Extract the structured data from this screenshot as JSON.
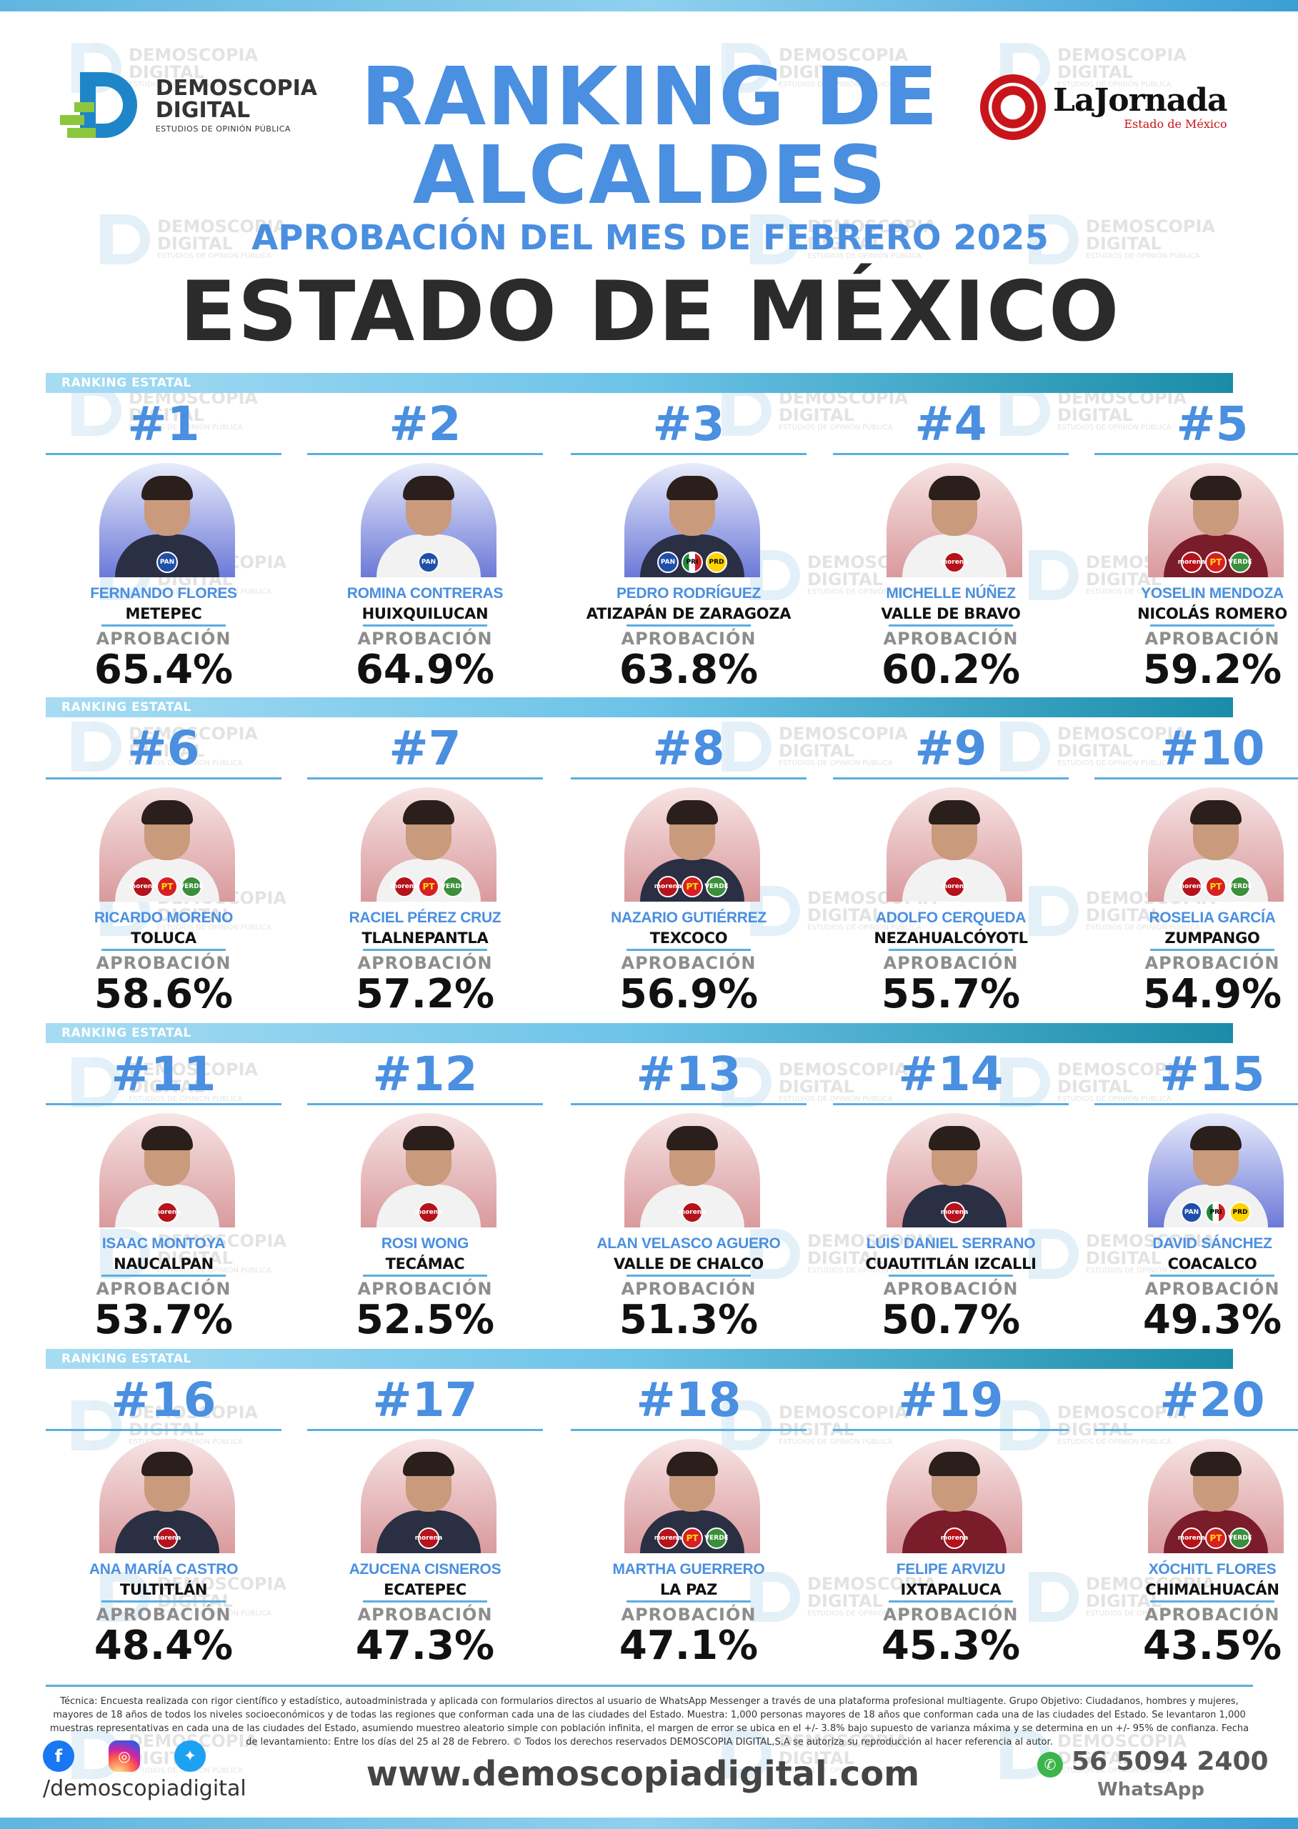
{
  "header": {
    "demoscopia_logo": {
      "line1": "DEMOSCOPIA",
      "line2": "DIGITAL",
      "tagline": "ESTUDIOS DE OPINIÓN PÚBLICA"
    },
    "jornada_logo": {
      "name": "LaJornada",
      "subtitle": "Estado de México"
    },
    "title_line1": "RANKING DE",
    "title_line2": "ALCALDES",
    "subtitle": "APROBACIÓN DEL MES DE FEBRERO 2025",
    "state": "ESTADO DE MÉXICO"
  },
  "watermark": {
    "line1": "DEMOSCOPIA",
    "line2": "DIGITAL",
    "line3": "ESTUDIOS DE OPINIÓN PÚBLICA"
  },
  "section_label": "RANKING ESTATAL",
  "approval_label": "APROBACIÓN",
  "colors": {
    "accent_blue": "#4a8fe0",
    "band_dark": "#1a8ca8",
    "morena": "#b5121b",
    "pan": "#1f4fa8"
  },
  "rows": [
    {
      "mayors": [
        {
          "rank": "#1",
          "name": "FERNANDO FLORES",
          "city": "METEPEC",
          "approval": "65.4%",
          "bg": "blue",
          "body": "dark",
          "parties": [
            "pan"
          ]
        },
        {
          "rank": "#2",
          "name": "ROMINA CONTRERAS",
          "city": "HUIXQUILUCAN",
          "approval": "64.9%",
          "bg": "blue",
          "body": "light",
          "parties": [
            "pan"
          ]
        },
        {
          "rank": "#3",
          "name": "PEDRO RODRÍGUEZ",
          "city": "ATIZAPÁN DE ZARAGOZA",
          "approval": "63.8%",
          "bg": "blue",
          "body": "dark",
          "parties": [
            "pan",
            "pri",
            "prd"
          ]
        },
        {
          "rank": "#4",
          "name": "MICHELLE NÚÑEZ",
          "city": "VALLE DE BRAVO",
          "approval": "60.2%",
          "bg": "red",
          "body": "light",
          "parties": [
            "morena"
          ]
        },
        {
          "rank": "#5",
          "name": "YOSELIN MENDOZA",
          "city": "NICOLÁS ROMERO",
          "approval": "59.2%",
          "bg": "red",
          "body": "maroon",
          "parties": [
            "morena",
            "pt",
            "verde"
          ]
        }
      ]
    },
    {
      "mayors": [
        {
          "rank": "#6",
          "name": "RICARDO MORENO",
          "city": "TOLUCA",
          "approval": "58.6%",
          "bg": "red",
          "body": "light",
          "parties": [
            "morena",
            "pt",
            "verde"
          ]
        },
        {
          "rank": "#7",
          "name": "RACIEL PÉREZ CRUZ",
          "city": "TLALNEPANTLA",
          "approval": "57.2%",
          "bg": "red",
          "body": "light",
          "parties": [
            "morena",
            "pt",
            "verde"
          ]
        },
        {
          "rank": "#8",
          "name": "NAZARIO GUTIÉRREZ",
          "city": "TEXCOCO",
          "approval": "56.9%",
          "bg": "red",
          "body": "dark",
          "parties": [
            "morena",
            "pt",
            "verde"
          ]
        },
        {
          "rank": "#9",
          "name": "ADOLFO CERQUEDA",
          "city": "NEZAHUALCÓYOTL",
          "approval": "55.7%",
          "bg": "red",
          "body": "light",
          "parties": [
            "morena"
          ]
        },
        {
          "rank": "#10",
          "name": "ROSELIA GARCÍA",
          "city": "ZUMPANGO",
          "approval": "54.9%",
          "bg": "red",
          "body": "light",
          "parties": [
            "morena",
            "pt",
            "verde"
          ]
        }
      ]
    },
    {
      "mayors": [
        {
          "rank": "#11",
          "name": "ISAAC MONTOYA",
          "city": "NAUCALPAN",
          "approval": "53.7%",
          "bg": "red",
          "body": "light",
          "parties": [
            "morena"
          ]
        },
        {
          "rank": "#12",
          "name": "ROSI WONG",
          "city": "TECÁMAC",
          "approval": "52.5%",
          "bg": "red",
          "body": "light",
          "parties": [
            "morena"
          ]
        },
        {
          "rank": "#13",
          "name": "ALAN VELASCO AGUERO",
          "city": "VALLE DE CHALCO",
          "approval": "51.3%",
          "bg": "red",
          "body": "light",
          "parties": [
            "morena"
          ]
        },
        {
          "rank": "#14",
          "name": "LUIS DANIEL SERRANO",
          "city": "CUAUTITLÁN IZCALLI",
          "approval": "50.7%",
          "bg": "red",
          "body": "dark",
          "parties": [
            "morena"
          ]
        },
        {
          "rank": "#15",
          "name": "DAVID SÁNCHEZ",
          "city": "COACALCO",
          "approval": "49.3%",
          "bg": "blue",
          "body": "light",
          "parties": [
            "pan",
            "pri",
            "prd"
          ]
        }
      ]
    },
    {
      "mayors": [
        {
          "rank": "#16",
          "name": "ANA MARÍA CASTRO",
          "city": "TULTITLÁN",
          "approval": "48.4%",
          "bg": "red",
          "body": "dark",
          "parties": [
            "morena"
          ]
        },
        {
          "rank": "#17",
          "name": "AZUCENA CISNEROS",
          "city": "ECATEPEC",
          "approval": "47.3%",
          "bg": "red",
          "body": "dark",
          "parties": [
            "morena"
          ]
        },
        {
          "rank": "#18",
          "name": "MARTHA GUERRERO",
          "city": "LA PAZ",
          "approval": "47.1%",
          "bg": "red",
          "body": "dark",
          "parties": [
            "morena",
            "pt",
            "verde"
          ]
        },
        {
          "rank": "#19",
          "name": "FELIPE ARVIZU",
          "city": "IXTAPALUCA",
          "approval": "45.3%",
          "bg": "red",
          "body": "maroon",
          "parties": [
            "morena"
          ]
        },
        {
          "rank": "#20",
          "name": "XÓCHITL FLORES",
          "city": "CHIMALHUACÁN",
          "approval": "43.5%",
          "bg": "red",
          "body": "maroon",
          "parties": [
            "morena",
            "pt",
            "verde"
          ]
        }
      ]
    }
  ],
  "party_labels": {
    "morena": "morena",
    "pt": "PT",
    "verde": "VERDE",
    "pan": "PAN",
    "pri": "PRI",
    "prd": "PRD"
  },
  "footer": {
    "tecnica": "Técnica: Encuesta realizada con rigor científico y estadístico, autoadministrada y aplicada con formularios directos al usuario de WhatsApp Messenger a través de una plataforma profesional multiagente. Grupo Objetivo: Ciudadanos, hombres y mujeres, mayores de 18 años de todos los niveles socioeconómicos y de todas las regiones que conforman cada una de las ciudades del Estado. Muestra: 1,000 personas mayores de 18 años que conforman cada una de las ciudades del Estado. Se levantaron 1,000 muestras representativas en cada una de las ciudades del Estado, asumiendo muestreo aleatorio simple con población infinita, el margen de error se ubica en el +/- 3.8% bajo supuesto de varianza máxima y se determina en un +/- 95% de confianza. Fecha de levantamiento: Entre los días del 25 al 28 de Febrero. © Todos los derechos reservados DEMOSCOPIA DIGITAL,S.A se autoriza su reproducción al hacer referencia al autor.",
    "handle": "/demoscopiadigital",
    "website": "www.demoscopiadigital.com",
    "phone": "56 5094 2400",
    "whatsapp": "WhatsApp"
  }
}
